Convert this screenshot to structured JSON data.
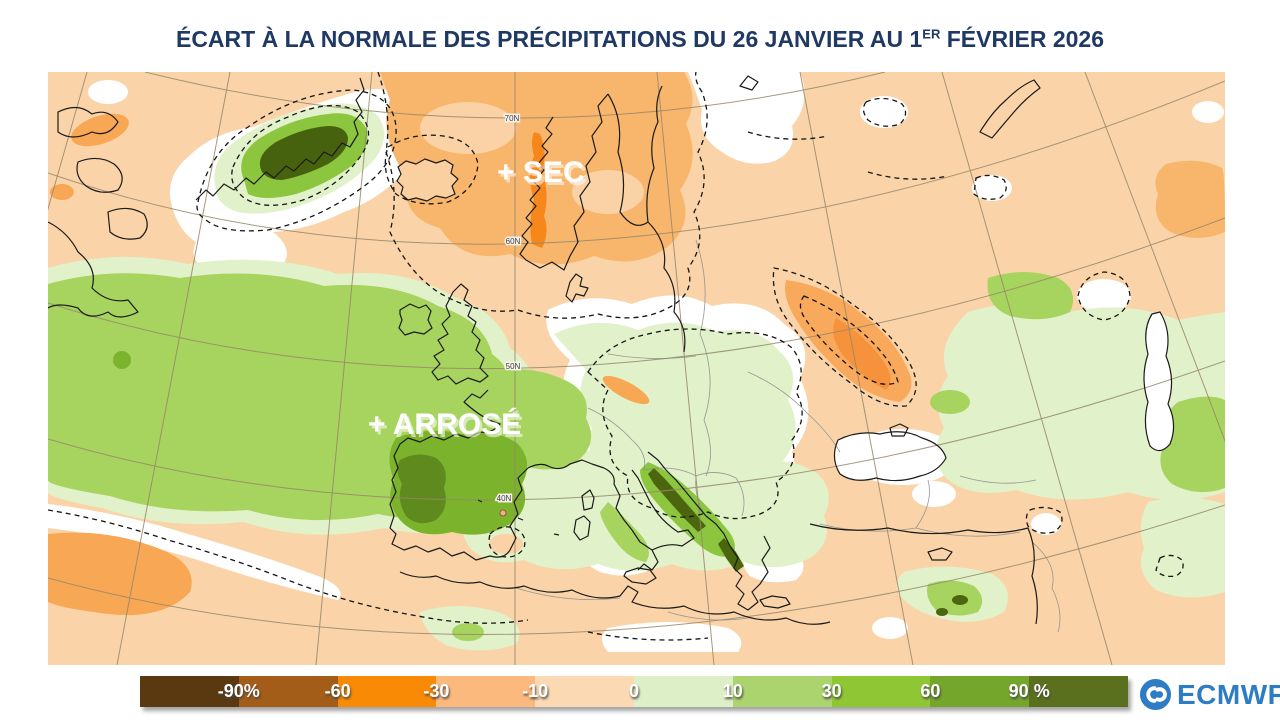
{
  "title": {
    "part1": "ÉCART À LA NORMALE DES PRÉCIPITATIONS DU 26 JANVIER AU 1",
    "sup": "ER",
    "part2": " FÉVRIER 2026",
    "color": "#1F3864"
  },
  "map": {
    "labels": {
      "dry": "+ SEC",
      "wet": "+ ARROSÉ"
    },
    "graticule_labels": [
      "70N",
      "60N",
      "50N",
      "40N"
    ]
  },
  "legend": {
    "ticks": [
      "-90%",
      "-60",
      "-30",
      "-10",
      "0",
      "10",
      "30",
      "60",
      "90 %"
    ],
    "segment_colors": [
      "#5A3911",
      "#A45D19",
      "#F98A06",
      "#FBB97E",
      "#FBD9B2",
      "#DDEFC7",
      "#ABD46E",
      "#8FC734",
      "#73A62A",
      "#5A701E"
    ]
  },
  "logo": {
    "text": "ECMWF",
    "color": "#2E7CC3"
  }
}
